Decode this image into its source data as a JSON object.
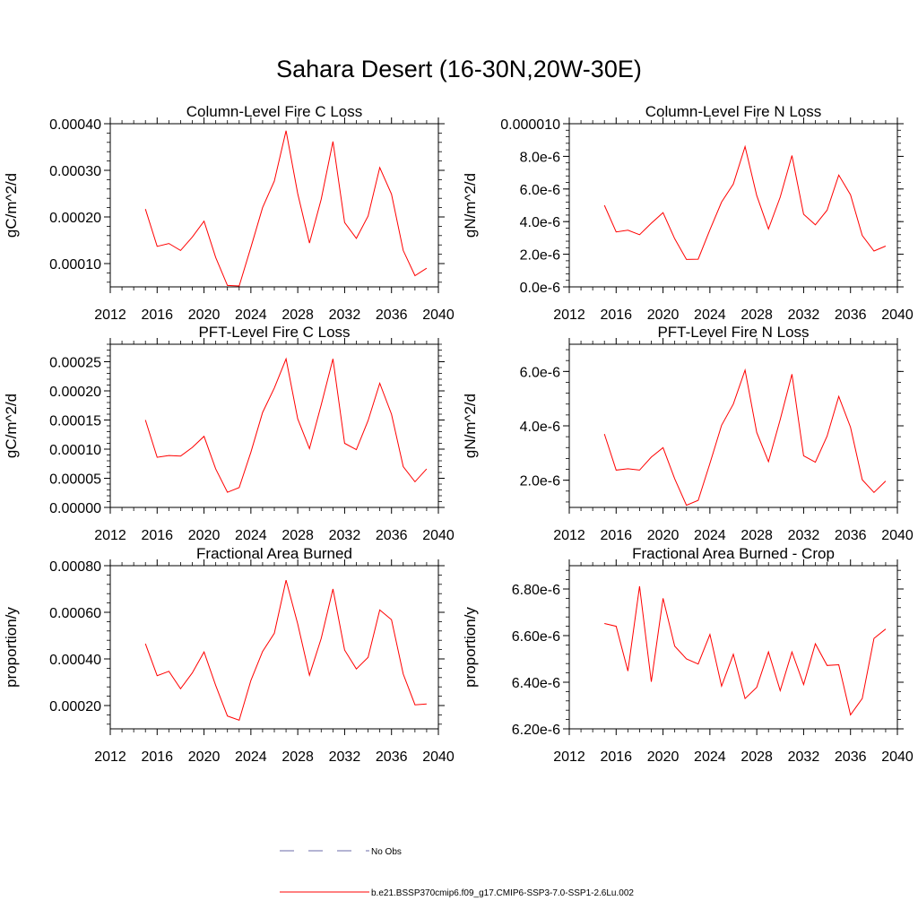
{
  "title": "Sahara Desert (16-30N,20W-30E)",
  "colors": {
    "series": "#ff0000",
    "obs": "#6a6aa8",
    "axis": "#000000"
  },
  "legend": {
    "obs_label": "No Obs",
    "model_label": "b.e21.BSSP370cmip6.f09_g17.CMIP6-SSP3-7.0-SSP1-2.6Lu.002"
  },
  "chart_data": [
    {
      "type": "line",
      "title": "Column-Level Fire C Loss",
      "ylabel": "gC/m^2/d",
      "xlim": [
        2012,
        2040
      ],
      "x_ticks": [
        2012,
        2016,
        2020,
        2024,
        2028,
        2032,
        2036,
        2040
      ],
      "x_tick_labels": [
        "2012",
        "2016",
        "2020",
        "2024",
        "2028",
        "2032",
        "2036",
        "2040"
      ],
      "ylim": [
        5e-05,
        0.0004
      ],
      "y_ticks": [
        0.0001,
        0.0002,
        0.0003,
        0.0004
      ],
      "y_tick_labels": [
        "0.00010",
        "0.00020",
        "0.00030",
        "0.00040"
      ],
      "x": [
        2015,
        2016,
        2017,
        2018,
        2019,
        2020,
        2021,
        2022,
        2023,
        2024,
        2025,
        2026,
        2027,
        2028,
        2029,
        2030,
        2031,
        2032,
        2033,
        2034,
        2035,
        2036,
        2037,
        2038,
        2039
      ],
      "series": [
        {
          "values": [
            0.000217,
            0.000137,
            0.000143,
            0.000128,
            0.000157,
            0.000191,
            0.000113,
            5.3e-05,
            5.2e-05,
            0.000135,
            0.00022,
            0.000277,
            0.000385,
            0.00025,
            0.000144,
            0.000238,
            0.000362,
            0.000188,
            0.000154,
            0.000202,
            0.000306,
            0.000249,
            0.000128,
            7.4e-05,
            9e-05
          ]
        }
      ]
    },
    {
      "type": "line",
      "title": "Column-Level Fire N Loss",
      "ylabel": "gN/m^2/d",
      "xlim": [
        2012,
        2040
      ],
      "x_ticks": [
        2012,
        2016,
        2020,
        2024,
        2028,
        2032,
        2036,
        2040
      ],
      "x_tick_labels": [
        "2012",
        "2016",
        "2020",
        "2024",
        "2028",
        "2032",
        "2036",
        "2040"
      ],
      "ylim": [
        0,
        1e-05
      ],
      "y_ticks": [
        0,
        2e-06,
        4e-06,
        6e-06,
        8e-06,
        1e-05
      ],
      "y_tick_labels": [
        "0.0e-6",
        "2.0e-6",
        "4.0e-6",
        "6.0e-6",
        "8.0e-6",
        "0.000010"
      ],
      "x": [
        2015,
        2016,
        2017,
        2018,
        2019,
        2020,
        2021,
        2022,
        2023,
        2024,
        2025,
        2026,
        2027,
        2028,
        2029,
        2030,
        2031,
        2032,
        2033,
        2034,
        2035,
        2036,
        2037,
        2038,
        2039
      ],
      "series": [
        {
          "values": [
            5e-06,
            3.37e-06,
            3.47e-06,
            3.2e-06,
            3.9e-06,
            4.55e-06,
            2.95e-06,
            1.68e-06,
            1.7e-06,
            3.5e-06,
            5.2e-06,
            6.3e-06,
            8.6e-06,
            5.6e-06,
            3.55e-06,
            5.5e-06,
            8.05e-06,
            4.45e-06,
            3.8e-06,
            4.7e-06,
            6.85e-06,
            5.65e-06,
            3.15e-06,
            2.2e-06,
            2.5e-06
          ]
        }
      ]
    },
    {
      "type": "line",
      "title": "PFT-Level Fire C Loss",
      "ylabel": "gC/m^2/d",
      "xlim": [
        2012,
        2040
      ],
      "x_ticks": [
        2012,
        2016,
        2020,
        2024,
        2028,
        2032,
        2036,
        2040
      ],
      "x_tick_labels": [
        "2012",
        "2016",
        "2020",
        "2024",
        "2028",
        "2032",
        "2036",
        "2040"
      ],
      "ylim": [
        0,
        0.00028
      ],
      "y_ticks": [
        0,
        5e-05,
        0.0001,
        0.00015,
        0.0002,
        0.00025
      ],
      "y_tick_labels": [
        "0.00000",
        "0.00005",
        "0.00010",
        "0.00015",
        "0.00020",
        "0.00025"
      ],
      "x": [
        2015,
        2016,
        2017,
        2018,
        2019,
        2020,
        2021,
        2022,
        2023,
        2024,
        2025,
        2026,
        2027,
        2028,
        2029,
        2030,
        2031,
        2032,
        2033,
        2034,
        2035,
        2036,
        2037,
        2038,
        2039
      ],
      "series": [
        {
          "values": [
            0.00015,
            8.6e-05,
            8.9e-05,
            8.8e-05,
            0.000103,
            0.000122,
            6.6e-05,
            2.6e-05,
            3.4e-05,
            9.5e-05,
            0.000163,
            0.000205,
            0.000255,
            0.000152,
            0.000101,
            0.000176,
            0.000255,
            0.00011,
            9.9e-05,
            0.000149,
            0.000213,
            0.00016,
            7e-05,
            4.4e-05,
            6.6e-05
          ]
        }
      ]
    },
    {
      "type": "line",
      "title": "PFT-Level Fire N Loss",
      "ylabel": "gN/m^2/d",
      "xlim": [
        2012,
        2040
      ],
      "x_ticks": [
        2012,
        2016,
        2020,
        2024,
        2028,
        2032,
        2036,
        2040
      ],
      "x_tick_labels": [
        "2012",
        "2016",
        "2020",
        "2024",
        "2028",
        "2032",
        "2036",
        "2040"
      ],
      "ylim": [
        1e-06,
        7e-06
      ],
      "y_ticks": [
        2e-06,
        4e-06,
        6e-06
      ],
      "y_tick_labels": [
        "2.0e-6",
        "4.0e-6",
        "6.0e-6"
      ],
      "x": [
        2015,
        2016,
        2017,
        2018,
        2019,
        2020,
        2021,
        2022,
        2023,
        2024,
        2025,
        2026,
        2027,
        2028,
        2029,
        2030,
        2031,
        2032,
        2033,
        2034,
        2035,
        2036,
        2037,
        2038,
        2039
      ],
      "series": [
        {
          "values": [
            3.7e-06,
            2.37e-06,
            2.42e-06,
            2.37e-06,
            2.85e-06,
            3.2e-06,
            2.05e-06,
            1.08e-06,
            1.26e-06,
            2.62e-06,
            4.02e-06,
            4.8e-06,
            6.05e-06,
            3.76e-06,
            2.68e-06,
            4.23e-06,
            5.9e-06,
            2.9e-06,
            2.66e-06,
            3.62e-06,
            5.08e-06,
            3.95e-06,
            2.02e-06,
            1.55e-06,
            1.97e-06
          ]
        }
      ]
    },
    {
      "type": "line",
      "title": "Fractional Area Burned",
      "ylabel": "proportion/y",
      "xlim": [
        2012,
        2040
      ],
      "x_ticks": [
        2012,
        2016,
        2020,
        2024,
        2028,
        2032,
        2036,
        2040
      ],
      "x_tick_labels": [
        "2012",
        "2016",
        "2020",
        "2024",
        "2028",
        "2032",
        "2036",
        "2040"
      ],
      "ylim": [
        0.0001,
        0.0008
      ],
      "y_ticks": [
        0.0002,
        0.0004,
        0.0006,
        0.0008
      ],
      "y_tick_labels": [
        "0.00020",
        "0.00040",
        "0.00060",
        "0.00080"
      ],
      "x": [
        2015,
        2016,
        2017,
        2018,
        2019,
        2020,
        2021,
        2022,
        2023,
        2024,
        2025,
        2026,
        2027,
        2028,
        2029,
        2030,
        2031,
        2032,
        2033,
        2034,
        2035,
        2036,
        2037,
        2038,
        2039
      ],
      "series": [
        {
          "values": [
            0.000465,
            0.000328,
            0.000347,
            0.000272,
            0.00034,
            0.00043,
            0.000286,
            0.000155,
            0.000137,
            0.000308,
            0.000432,
            0.00051,
            0.000738,
            0.00055,
            0.00033,
            0.000488,
            0.0007,
            0.000438,
            0.000357,
            0.000407,
            0.00061,
            0.000568,
            0.000335,
            0.000203,
            0.000207
          ]
        }
      ]
    },
    {
      "type": "line",
      "title": "Fractional Area Burned - Crop",
      "ylabel": "proportion/y",
      "xlim": [
        2012,
        2040
      ],
      "x_ticks": [
        2012,
        2016,
        2020,
        2024,
        2028,
        2032,
        2036,
        2040
      ],
      "x_tick_labels": [
        "2012",
        "2016",
        "2020",
        "2024",
        "2028",
        "2032",
        "2036",
        "2040"
      ],
      "ylim": [
        6.2e-06,
        6.9e-06
      ],
      "y_ticks": [
        6.2e-06,
        6.4e-06,
        6.6e-06,
        6.8e-06
      ],
      "y_tick_labels": [
        "6.20e-6",
        "6.40e-6",
        "6.60e-6",
        "6.80e-6"
      ],
      "x": [
        2015,
        2016,
        2017,
        2018,
        2019,
        2020,
        2021,
        2022,
        2023,
        2024,
        2025,
        2026,
        2027,
        2028,
        2029,
        2030,
        2031,
        2032,
        2033,
        2034,
        2035,
        2036,
        2037,
        2038,
        2039
      ],
      "series": [
        {
          "values": [
            6.652e-06,
            6.64e-06,
            6.448e-06,
            6.812e-06,
            6.402e-06,
            6.76e-06,
            6.555e-06,
            6.5e-06,
            6.478e-06,
            6.605e-06,
            6.383e-06,
            6.52e-06,
            6.33e-06,
            6.378e-06,
            6.53e-06,
            6.364e-06,
            6.53e-06,
            6.39e-06,
            6.565e-06,
            6.472e-06,
            6.475e-06,
            6.26e-06,
            6.33e-06,
            6.588e-06,
            6.628e-06
          ]
        }
      ]
    }
  ]
}
